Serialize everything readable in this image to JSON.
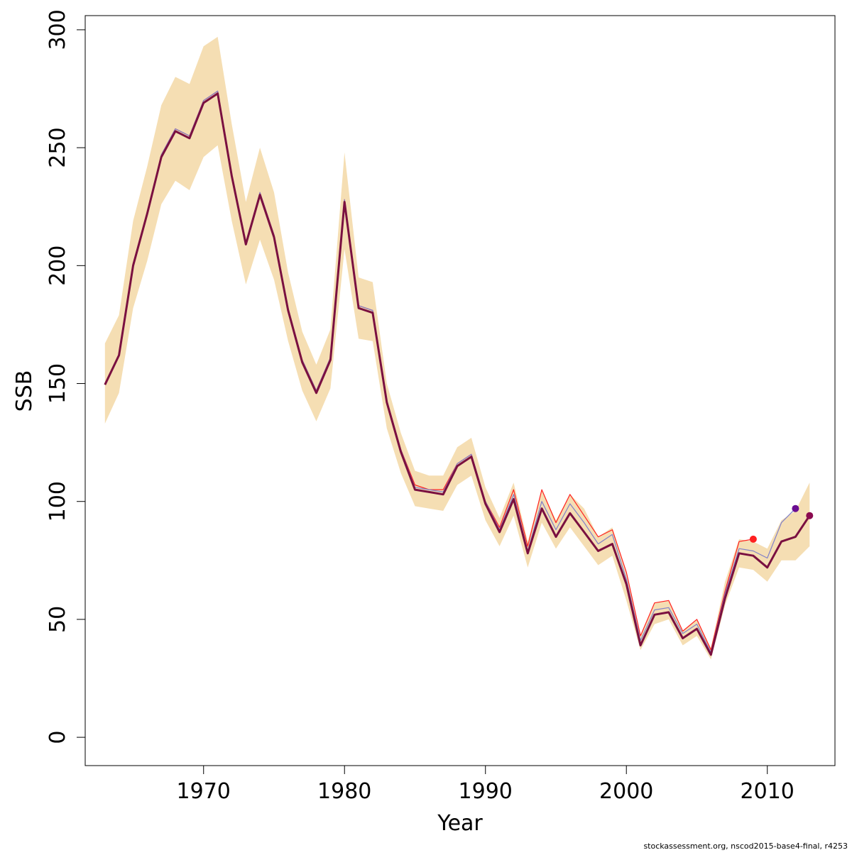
{
  "chart_data": {
    "type": "line",
    "title": "",
    "xlabel": "Year",
    "ylabel": "SSB",
    "xlim": [
      1961.6,
      2014.8
    ],
    "ylim": [
      -12,
      306
    ],
    "x_ticks": [
      1970,
      1980,
      1990,
      2000,
      2010
    ],
    "y_ticks": [
      0,
      50,
      100,
      150,
      200,
      250,
      300
    ],
    "grid": false,
    "legend": "none",
    "footer": "stockassessment.org, nscod2015-base4-final, r4253",
    "band": {
      "color": "#f5deb3",
      "x": [
        1963,
        1964,
        1965,
        1966,
        1967,
        1968,
        1969,
        1970,
        1971,
        1972,
        1973,
        1974,
        1975,
        1976,
        1977,
        1978,
        1979,
        1980,
        1981,
        1982,
        1983,
        1984,
        1985,
        1986,
        1987,
        1988,
        1989,
        1990,
        1991,
        1992,
        1993,
        1994,
        1995,
        1996,
        1997,
        1998,
        1999,
        2000,
        2001,
        2002,
        2003,
        2004,
        2005,
        2006,
        2007,
        2008,
        2009,
        2010,
        2011,
        2012,
        2013
      ],
      "lower": [
        133,
        146,
        182,
        202,
        226,
        236,
        232,
        246,
        251,
        219,
        192,
        211,
        194,
        168,
        147,
        134,
        148,
        207,
        169,
        168,
        131,
        112,
        98,
        97,
        96,
        107,
        111,
        92,
        81,
        94,
        72,
        91,
        80,
        89,
        81,
        73,
        77,
        58,
        37,
        48,
        50,
        39,
        43,
        33,
        56,
        72,
        71,
        66,
        75,
        75,
        81
      ],
      "upper": [
        167,
        179,
        219,
        242,
        268,
        280,
        277,
        293,
        297,
        260,
        227,
        250,
        231,
        197,
        172,
        158,
        173,
        248,
        195,
        193,
        150,
        129,
        113,
        111,
        111,
        123,
        127,
        106,
        93,
        108,
        83,
        105,
        92,
        103,
        97,
        85,
        89,
        70,
        43,
        57,
        58,
        45,
        50,
        38,
        66,
        84,
        83,
        80,
        92,
        96,
        108
      ]
    },
    "series": [
      {
        "name": "",
        "color": "#ff2020",
        "width": 1.2,
        "x": [
          1963,
          1964,
          1965,
          1966,
          1967,
          1968,
          1969,
          1970,
          1971,
          1972,
          1973,
          1974,
          1975,
          1976,
          1977,
          1978,
          1979,
          1980,
          1981,
          1982,
          1983,
          1984,
          1985,
          1986,
          1987,
          1988,
          1989,
          1990,
          1991,
          1992,
          1993,
          1994,
          1995,
          1996,
          1997,
          1998,
          1999,
          2000,
          2001,
          2002,
          2003,
          2004,
          2005,
          2006,
          2007,
          2008,
          2009
        ],
        "y": [
          150,
          162,
          201,
          222,
          247,
          258,
          255,
          270,
          274,
          239,
          210,
          231,
          213,
          182,
          160,
          147,
          161,
          228,
          183,
          181,
          143,
          122,
          107,
          105,
          105,
          116,
          120,
          100,
          89,
          105,
          81,
          105,
          91,
          103,
          94,
          85,
          88,
          70,
          43,
          57,
          58,
          45,
          50,
          37,
          62,
          83,
          84
        ],
        "end_marker": true
      },
      {
        "name": "",
        "color": "#8080c8",
        "width": 1.2,
        "x": [
          1963,
          1964,
          1965,
          1966,
          1967,
          1968,
          1969,
          1970,
          1971,
          1972,
          1973,
          1974,
          1975,
          1976,
          1977,
          1978,
          1979,
          1980,
          1981,
          1982,
          1983,
          1984,
          1985,
          1986,
          1987,
          1988,
          1989,
          1990,
          1991,
          1992,
          1993,
          1994,
          1995,
          1996,
          1997,
          1998,
          1999,
          2000,
          2001,
          2002,
          2003,
          2004,
          2005,
          2006,
          2007,
          2008,
          2009,
          2010,
          2011,
          2012
        ],
        "y": [
          150,
          162,
          201,
          222,
          247,
          258,
          255,
          270,
          274,
          239,
          210,
          231,
          213,
          182,
          160,
          147,
          161,
          228,
          183,
          181,
          143,
          122,
          106,
          105,
          104,
          116,
          120,
          100,
          88,
          103,
          79,
          100,
          88,
          99,
          91,
          82,
          86,
          67,
          41,
          54,
          55,
          44,
          48,
          36,
          61,
          80,
          79,
          76,
          91,
          97
        ],
        "end_marker": true,
        "marker_color": "#6a0d91"
      },
      {
        "name": "",
        "color": "#7a1040",
        "width": 3,
        "x": [
          1963,
          1964,
          1965,
          1966,
          1967,
          1968,
          1969,
          1970,
          1971,
          1972,
          1973,
          1974,
          1975,
          1976,
          1977,
          1978,
          1979,
          1980,
          1981,
          1982,
          1983,
          1984,
          1985,
          1986,
          1987,
          1988,
          1989,
          1990,
          1991,
          1992,
          1993,
          1994,
          1995,
          1996,
          1997,
          1998,
          1999,
          2000,
          2001,
          2002,
          2003,
          2004,
          2005,
          2006,
          2007,
          2008,
          2009,
          2010,
          2011,
          2012,
          2013
        ],
        "y": [
          149.5,
          162,
          200,
          222,
          246,
          257,
          254,
          269,
          273,
          238,
          209,
          230,
          212,
          181,
          159,
          146,
          160,
          227,
          182,
          180,
          142,
          121,
          105,
          104,
          103,
          115,
          119,
          99,
          87,
          101,
          78,
          97,
          85,
          95,
          87,
          79,
          82,
          65,
          39,
          52,
          53,
          42,
          46,
          35,
          59,
          78,
          77,
          72,
          83,
          85,
          94
        ],
        "end_marker": true,
        "marker_color": "#8b0a50"
      }
    ]
  }
}
